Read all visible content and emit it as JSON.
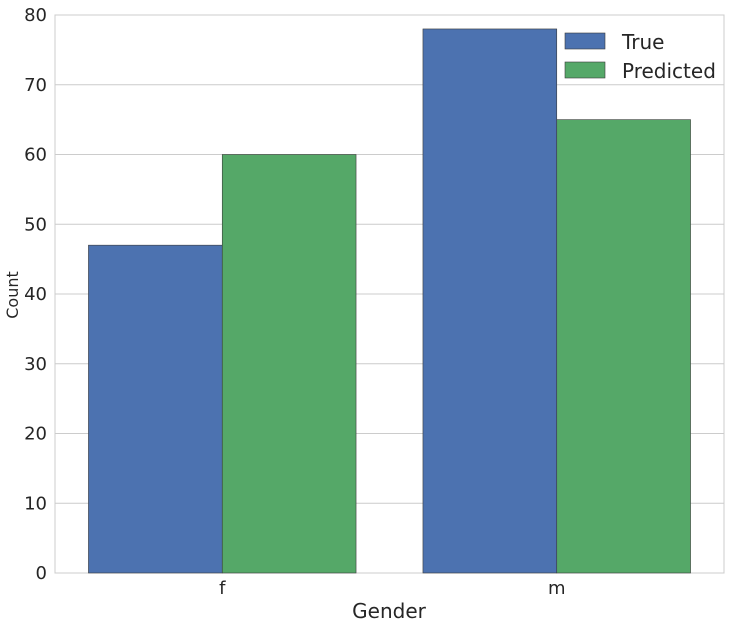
{
  "chart_data": {
    "type": "bar",
    "categories": [
      "f",
      "m"
    ],
    "series": [
      {
        "name": "True",
        "values": [
          47,
          78
        ],
        "color": "#4C72B0"
      },
      {
        "name": "Predicted",
        "values": [
          60,
          65
        ],
        "color": "#55A868"
      }
    ],
    "xlabel": "Gender",
    "ylabel": "Count",
    "ylim": [
      0,
      80
    ],
    "yticks": [
      0,
      10,
      20,
      30,
      40,
      50,
      60,
      70,
      80
    ],
    "grid": true,
    "legend_position": "top-right"
  }
}
